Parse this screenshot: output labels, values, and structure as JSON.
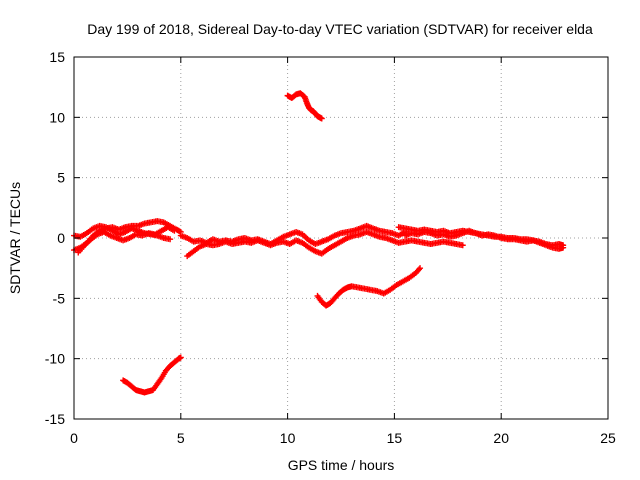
{
  "chart_data": {
    "type": "scatter",
    "title": "Day 199 of 2018, Sidereal Day-to-day VTEC variation (SDTVAR) for receiver elda",
    "xlabel": "GPS time / hours",
    "ylabel": "SDTVAR / TECUs",
    "xlim": [
      0,
      25
    ],
    "ylim": [
      -15,
      15
    ],
    "xticks": [
      0,
      5,
      10,
      15,
      20,
      25
    ],
    "yticks": [
      -15,
      -10,
      -5,
      0,
      5,
      10,
      15
    ],
    "grid": true,
    "marker": "+",
    "color": "#ff0000",
    "series": [
      {
        "name": "track-main-a",
        "points": [
          [
            0.0,
            -1.0
          ],
          [
            0.3,
            -0.8
          ],
          [
            0.6,
            -0.4
          ],
          [
            0.9,
            0.2
          ],
          [
            1.2,
            0.6
          ],
          [
            1.5,
            0.8
          ],
          [
            1.8,
            0.9
          ],
          [
            2.1,
            0.7
          ],
          [
            2.4,
            0.9
          ],
          [
            2.7,
            1.0
          ],
          [
            3.0,
            1.0
          ],
          [
            3.3,
            1.2
          ],
          [
            3.6,
            1.3
          ],
          [
            3.9,
            1.4
          ],
          [
            4.2,
            1.3
          ],
          [
            4.5,
            1.0
          ],
          [
            4.8,
            0.7
          ],
          [
            5.0,
            0.5
          ]
        ]
      },
      {
        "name": "track-main-b",
        "points": [
          [
            0.0,
            0.2
          ],
          [
            0.3,
            0.1
          ],
          [
            0.6,
            0.4
          ],
          [
            0.9,
            0.8
          ],
          [
            1.2,
            1.0
          ],
          [
            1.5,
            0.9
          ],
          [
            1.8,
            0.6
          ],
          [
            2.1,
            0.3
          ],
          [
            2.4,
            0.5
          ],
          [
            2.7,
            0.8
          ],
          [
            3.0,
            0.6
          ],
          [
            3.3,
            0.4
          ],
          [
            3.6,
            0.3
          ],
          [
            3.9,
            0.2
          ],
          [
            4.2,
            0.0
          ],
          [
            4.5,
            -0.1
          ]
        ]
      },
      {
        "name": "track-main-c",
        "points": [
          [
            0.2,
            -1.2
          ],
          [
            0.5,
            -0.6
          ],
          [
            0.8,
            -0.1
          ],
          [
            1.1,
            0.3
          ],
          [
            1.4,
            0.5
          ],
          [
            1.7,
            0.2
          ],
          [
            2.0,
            0.0
          ],
          [
            2.3,
            -0.2
          ],
          [
            2.6,
            0.0
          ],
          [
            2.9,
            0.3
          ],
          [
            3.2,
            0.2
          ],
          [
            3.5,
            0.4
          ],
          [
            3.8,
            0.3
          ],
          [
            4.1,
            0.6
          ],
          [
            4.4,
            0.9
          ],
          [
            4.7,
            0.6
          ]
        ]
      },
      {
        "name": "track-main-d",
        "points": [
          [
            5.0,
            0.2
          ],
          [
            5.3,
            0.0
          ],
          [
            5.6,
            -0.3
          ],
          [
            5.9,
            -0.2
          ],
          [
            6.2,
            -0.4
          ],
          [
            6.5,
            -0.1
          ],
          [
            6.8,
            -0.3
          ],
          [
            7.1,
            -0.2
          ],
          [
            7.4,
            -0.3
          ],
          [
            7.7,
            -0.1
          ],
          [
            8.0,
            0.0
          ],
          [
            8.3,
            -0.2
          ],
          [
            8.6,
            -0.1
          ],
          [
            8.9,
            -0.3
          ],
          [
            9.2,
            -0.5
          ],
          [
            9.5,
            -0.2
          ],
          [
            9.8,
            0.1
          ],
          [
            10.1,
            0.3
          ],
          [
            10.4,
            0.5
          ],
          [
            10.7,
            0.3
          ],
          [
            11.0,
            -0.2
          ],
          [
            11.3,
            -0.5
          ],
          [
            11.6,
            -0.3
          ],
          [
            11.9,
            -0.1
          ],
          [
            12.2,
            0.2
          ],
          [
            12.5,
            0.4
          ],
          [
            12.8,
            0.5
          ],
          [
            13.1,
            0.6
          ],
          [
            13.4,
            0.8
          ],
          [
            13.7,
            1.0
          ],
          [
            14.0,
            0.8
          ],
          [
            14.3,
            0.6
          ],
          [
            14.6,
            0.5
          ],
          [
            14.9,
            0.4
          ],
          [
            15.2,
            0.2
          ],
          [
            15.5,
            0.5
          ]
        ]
      },
      {
        "name": "track-main-e",
        "points": [
          [
            5.3,
            -1.5
          ],
          [
            5.6,
            -1.1
          ],
          [
            5.9,
            -0.7
          ],
          [
            6.2,
            -0.5
          ],
          [
            6.5,
            -0.6
          ],
          [
            6.8,
            -0.5
          ],
          [
            7.1,
            -0.3
          ],
          [
            7.4,
            -0.5
          ],
          [
            7.7,
            -0.4
          ],
          [
            8.0,
            -0.3
          ],
          [
            8.3,
            -0.4
          ],
          [
            8.6,
            -0.2
          ],
          [
            8.9,
            -0.4
          ],
          [
            9.2,
            -0.6
          ],
          [
            9.5,
            -0.4
          ],
          [
            9.8,
            -0.3
          ],
          [
            10.1,
            -0.5
          ],
          [
            10.4,
            -0.2
          ],
          [
            10.7,
            -0.4
          ],
          [
            11.0,
            -0.8
          ],
          [
            11.3,
            -1.1
          ],
          [
            11.6,
            -1.3
          ],
          [
            11.9,
            -0.9
          ],
          [
            12.2,
            -0.6
          ],
          [
            12.5,
            -0.3
          ],
          [
            12.8,
            0.0
          ],
          [
            13.1,
            0.2
          ],
          [
            13.4,
            0.3
          ],
          [
            13.7,
            0.5
          ],
          [
            14.0,
            0.3
          ],
          [
            14.3,
            0.1
          ],
          [
            14.6,
            0.0
          ],
          [
            14.9,
            -0.2
          ],
          [
            15.2,
            -0.4
          ],
          [
            15.5,
            -0.3
          ],
          [
            15.8,
            -0.2
          ],
          [
            16.1,
            -0.3
          ],
          [
            16.4,
            -0.4
          ],
          [
            16.7,
            -0.5
          ],
          [
            17.0,
            -0.4
          ],
          [
            17.3,
            -0.3
          ],
          [
            17.6,
            -0.4
          ],
          [
            17.9,
            -0.5
          ],
          [
            18.2,
            -0.6
          ]
        ]
      },
      {
        "name": "track-main-f",
        "points": [
          [
            15.2,
            0.9
          ],
          [
            15.5,
            0.8
          ],
          [
            15.8,
            0.7
          ],
          [
            16.1,
            0.6
          ],
          [
            16.4,
            0.7
          ],
          [
            16.7,
            0.6
          ],
          [
            17.0,
            0.5
          ],
          [
            17.3,
            0.6
          ],
          [
            17.6,
            0.4
          ],
          [
            17.9,
            0.5
          ],
          [
            18.2,
            0.6
          ],
          [
            18.5,
            0.5
          ],
          [
            18.8,
            0.4
          ],
          [
            19.1,
            0.3
          ],
          [
            19.4,
            0.2
          ],
          [
            19.7,
            0.1
          ],
          [
            20.0,
            0.1
          ],
          [
            20.3,
            0.0
          ],
          [
            20.6,
            0.0
          ],
          [
            20.9,
            -0.1
          ],
          [
            21.2,
            -0.1
          ],
          [
            21.5,
            -0.2
          ],
          [
            21.8,
            -0.3
          ],
          [
            22.1,
            -0.5
          ],
          [
            22.4,
            -0.6
          ],
          [
            22.7,
            -0.5
          ],
          [
            22.9,
            -0.6
          ]
        ]
      },
      {
        "name": "track-main-g",
        "points": [
          [
            15.5,
            0.2
          ],
          [
            15.8,
            0.4
          ],
          [
            16.1,
            0.3
          ],
          [
            16.4,
            0.5
          ],
          [
            16.7,
            0.4
          ],
          [
            17.0,
            0.2
          ],
          [
            17.3,
            0.3
          ],
          [
            17.6,
            0.1
          ],
          [
            17.9,
            0.2
          ],
          [
            18.2,
            0.4
          ],
          [
            18.5,
            0.6
          ],
          [
            18.8,
            0.4
          ],
          [
            19.1,
            0.2
          ],
          [
            19.4,
            0.3
          ],
          [
            19.7,
            0.2
          ],
          [
            20.0,
            0.0
          ],
          [
            20.3,
            -0.1
          ],
          [
            20.6,
            -0.1
          ],
          [
            20.9,
            -0.2
          ],
          [
            21.2,
            -0.3
          ],
          [
            21.5,
            -0.2
          ],
          [
            21.8,
            -0.4
          ],
          [
            22.1,
            -0.6
          ],
          [
            22.4,
            -0.8
          ],
          [
            22.7,
            -0.9
          ],
          [
            22.9,
            -0.8
          ]
        ]
      },
      {
        "name": "track-high",
        "points": [
          [
            10.0,
            11.8
          ],
          [
            10.2,
            11.6
          ],
          [
            10.4,
            11.9
          ],
          [
            10.6,
            12.0
          ],
          [
            10.8,
            11.7
          ],
          [
            10.9,
            11.2
          ],
          [
            11.0,
            10.8
          ],
          [
            11.1,
            10.6
          ],
          [
            11.2,
            10.5
          ],
          [
            11.3,
            10.3
          ],
          [
            11.4,
            10.1
          ],
          [
            11.5,
            10.0
          ],
          [
            11.6,
            9.9
          ]
        ]
      },
      {
        "name": "track-mid-low",
        "points": [
          [
            11.4,
            -4.8
          ],
          [
            11.6,
            -5.3
          ],
          [
            11.8,
            -5.6
          ],
          [
            12.0,
            -5.4
          ],
          [
            12.2,
            -5.0
          ],
          [
            12.4,
            -4.6
          ],
          [
            12.6,
            -4.3
          ],
          [
            12.8,
            -4.1
          ],
          [
            13.0,
            -4.0
          ],
          [
            13.3,
            -4.1
          ],
          [
            13.6,
            -4.2
          ],
          [
            13.9,
            -4.3
          ],
          [
            14.2,
            -4.4
          ],
          [
            14.5,
            -4.6
          ],
          [
            14.8,
            -4.3
          ],
          [
            15.1,
            -3.9
          ],
          [
            15.4,
            -3.6
          ],
          [
            15.7,
            -3.3
          ],
          [
            16.0,
            -2.9
          ],
          [
            16.2,
            -2.5
          ]
        ]
      },
      {
        "name": "track-low",
        "points": [
          [
            2.3,
            -11.8
          ],
          [
            2.5,
            -12.0
          ],
          [
            2.7,
            -12.3
          ],
          [
            2.9,
            -12.6
          ],
          [
            3.1,
            -12.7
          ],
          [
            3.3,
            -12.8
          ],
          [
            3.5,
            -12.7
          ],
          [
            3.7,
            -12.6
          ],
          [
            3.9,
            -12.1
          ],
          [
            4.1,
            -11.6
          ],
          [
            4.3,
            -11.0
          ],
          [
            4.5,
            -10.6
          ],
          [
            4.7,
            -10.3
          ],
          [
            4.9,
            -10.0
          ],
          [
            5.0,
            -9.9
          ]
        ]
      }
    ]
  }
}
